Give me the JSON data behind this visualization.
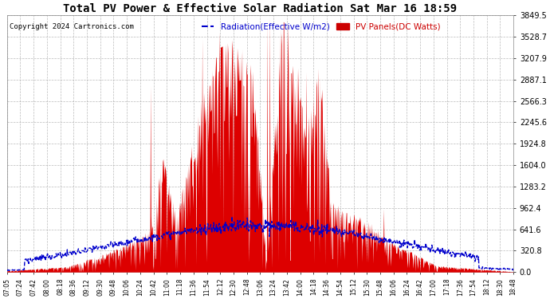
{
  "title": "Total PV Power & Effective Solar Radiation Sat Mar 16 18:59",
  "copyright": "Copyright 2024 Cartronics.com",
  "legend_radiation": "Radiation(Effective W/m2)",
  "legend_pv": "PV Panels(DC Watts)",
  "bg_color": "#ffffff",
  "plot_bg_color": "#ffffff",
  "grid_color": "#aaaaaa",
  "title_color": "#000000",
  "copyright_color": "#000000",
  "legend_radiation_color": "#0000cc",
  "legend_pv_color": "#cc0000",
  "pv_fill_color": "#dd0000",
  "radiation_line_color": "#0000cc",
  "ymax": 3849.5,
  "yticks": [
    0.0,
    320.8,
    641.6,
    962.4,
    1283.2,
    1604.0,
    1924.8,
    2245.6,
    2566.3,
    2887.1,
    3207.9,
    3528.7,
    3849.5
  ],
  "xtick_labels": [
    "07:05",
    "07:24",
    "07:42",
    "08:00",
    "08:18",
    "08:36",
    "09:12",
    "09:30",
    "09:48",
    "10:06",
    "10:24",
    "10:42",
    "11:00",
    "11:18",
    "11:36",
    "11:54",
    "12:12",
    "12:30",
    "12:48",
    "13:06",
    "13:24",
    "13:42",
    "14:00",
    "14:18",
    "14:36",
    "14:54",
    "15:12",
    "15:30",
    "15:48",
    "16:06",
    "16:24",
    "16:42",
    "17:00",
    "17:18",
    "17:36",
    "17:54",
    "18:12",
    "18:30",
    "18:48"
  ]
}
